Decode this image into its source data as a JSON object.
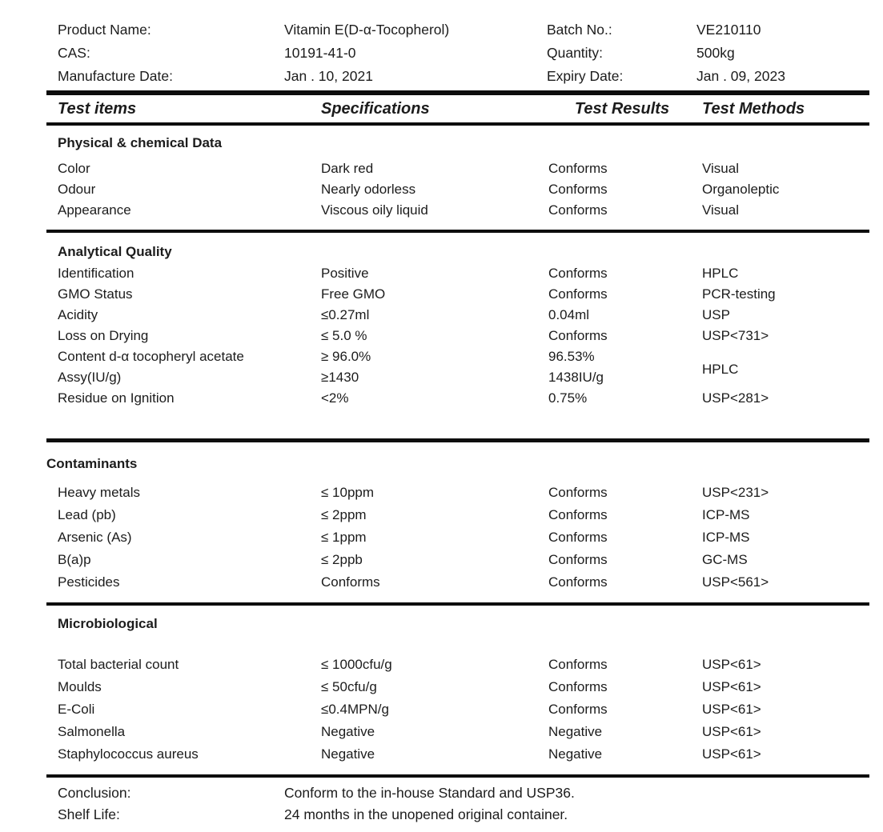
{
  "header": {
    "rows": [
      {
        "label_left": "Product Name:",
        "value_left": "Vitamin E(D-α-Tocopherol)",
        "label_right": "Batch No.:",
        "value_right": "VE210110"
      },
      {
        "label_left": "CAS:",
        "value_left": "10191-41-0",
        "label_right": "Quantity:",
        "value_right": "500kg"
      },
      {
        "label_left": "Manufacture Date:",
        "value_left": "Jan . 10, 2021",
        "label_right": "Expiry Date:",
        "value_right": "Jan . 09, 2023"
      }
    ]
  },
  "table": {
    "columns": {
      "items": "Test items",
      "specifications": "Specifications",
      "results": "Test Results",
      "methods": "Test Methods"
    },
    "sections": [
      {
        "title": "Physical & chemical Data",
        "rows": [
          {
            "item": "Color",
            "spec": "Dark red",
            "result": "Conforms",
            "method": "Visual"
          },
          {
            "item": "Odour",
            "spec": "Nearly odorless",
            "result": "Conforms",
            "method": "Organoleptic"
          },
          {
            "item": "Appearance",
            "spec": "Viscous oily liquid",
            "result": "Conforms",
            "method": "Visual"
          }
        ]
      },
      {
        "title": "Analytical Quality",
        "rows": [
          {
            "item": "Identification",
            "spec": "Positive",
            "result": "Conforms",
            "method": "HPLC"
          },
          {
            "item": "GMO Status",
            "spec": "Free GMO",
            "result": "Conforms",
            "method": "PCR-testing"
          },
          {
            "item": "Acidity",
            "spec": "≤0.27ml",
            "result": "0.04ml",
            "method": "USP"
          },
          {
            "item": "Loss on Drying",
            "spec": "≤ 5.0 %",
            "result": "Conforms",
            "method": "USP<731>"
          },
          {
            "item": "Content d-α tocopheryl acetate",
            "spec": "≥ 96.0%",
            "result": "96.53%",
            "method": "HPLC",
            "method_rowspan": 2
          },
          {
            "item": "Assy(IU/g)",
            "spec": "≥1430",
            "result": "1438IU/g",
            "method": null
          },
          {
            "item": "Residue on Ignition",
            "spec": "<2%",
            "result": "0.75%",
            "method": "USP<281>"
          }
        ]
      },
      {
        "title": "Contaminants",
        "rows": [
          {
            "item": "Heavy metals",
            "spec": "≤ 10ppm",
            "result": "Conforms",
            "method": "USP<231>"
          },
          {
            "item": "Lead (pb)",
            "spec": "≤ 2ppm",
            "result": "Conforms",
            "method": "ICP-MS"
          },
          {
            "item": "Arsenic (As)",
            "spec": "≤ 1ppm",
            "result": "Conforms",
            "method": "ICP-MS"
          },
          {
            "item": "B(a)p",
            "spec": "≤ 2ppb",
            "result": "Conforms",
            "method": "GC-MS"
          },
          {
            "item": "Pesticides",
            "spec": "Conforms",
            "result": "Conforms",
            "method": "USP<561>"
          }
        ]
      },
      {
        "title": "Microbiological",
        "rows": [
          {
            "item": "Total bacterial count",
            "spec": "≤ 1000cfu/g",
            "result": "Conforms",
            "method": "USP<61>"
          },
          {
            "item": "Moulds",
            "spec": "≤ 50cfu/g",
            "result": "Conforms",
            "method": "USP<61>"
          },
          {
            "item": "E-Coli",
            "spec": "≤0.4MPN/g",
            "result": "Conforms",
            "method": "USP<61>"
          },
          {
            "item": "Salmonella",
            "spec": "Negative",
            "result": "Negative",
            "method": "USP<61>"
          },
          {
            "item": "Staphylococcus aureus",
            "spec": "Negative",
            "result": "Negative",
            "method": "USP<61>"
          }
        ]
      }
    ]
  },
  "footer": {
    "rows": [
      {
        "label": "Conclusion:",
        "value": "Conform to the in-house Standard and USP36."
      },
      {
        "label": "Shelf Life:",
        "value": "24 months in the unopened original container."
      }
    ]
  }
}
